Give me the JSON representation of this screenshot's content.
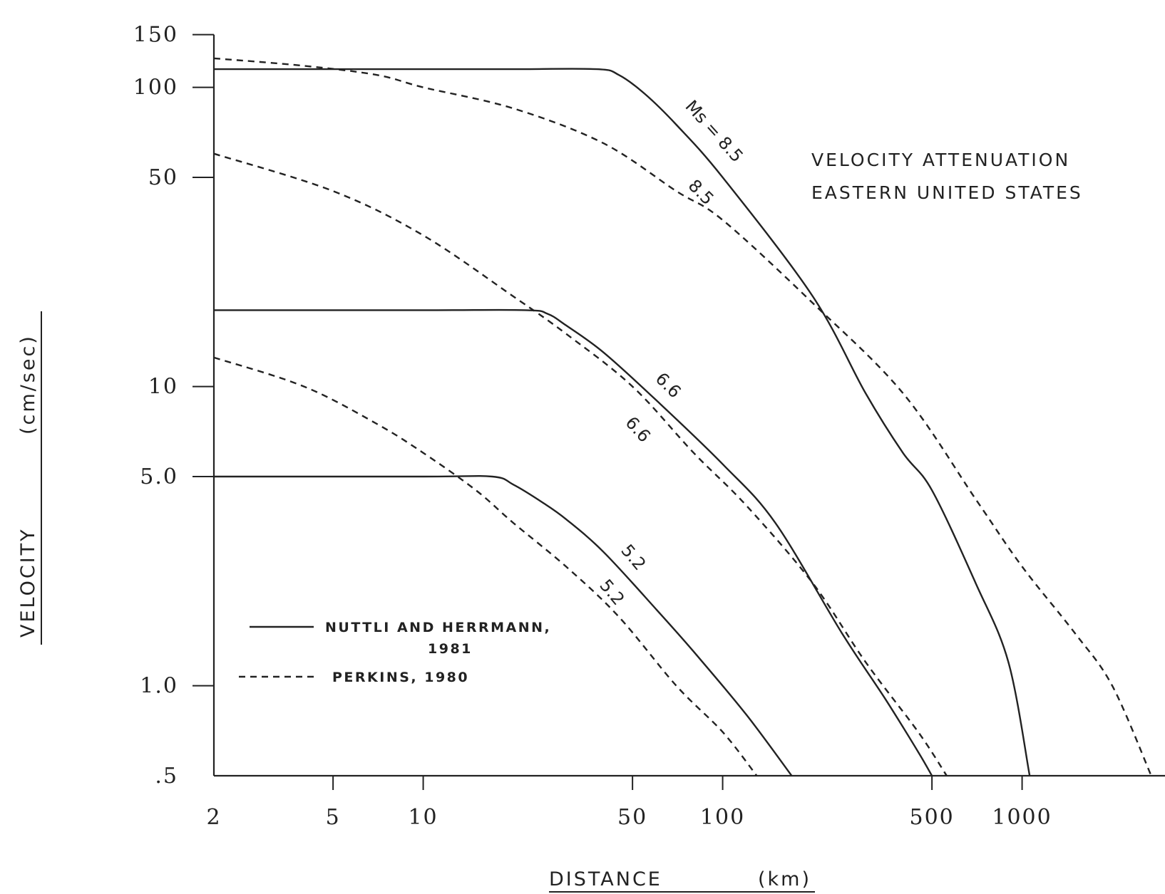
{
  "chart_data": {
    "type": "line",
    "title": [
      "VELOCITY ATTENUATION",
      "EASTERN UNITED STATES"
    ],
    "xlabel": "DISTANCE",
    "xunit": "(km)",
    "ylabel": "VELOCITY",
    "yunit": "(cm/sec)",
    "xscale": "log",
    "yscale": "log",
    "xlim": [
      2,
      3000
    ],
    "ylim": [
      0.5,
      150
    ],
    "x_ticks": [
      {
        "value": 2,
        "label": "2"
      },
      {
        "value": 5,
        "label": "5"
      },
      {
        "value": 10,
        "label": "10"
      },
      {
        "value": 50,
        "label": "50"
      },
      {
        "value": 100,
        "label": "100"
      },
      {
        "value": 500,
        "label": "500"
      },
      {
        "value": 1000,
        "label": "1000"
      }
    ],
    "y_ticks": [
      {
        "value": 0.5,
        "label": ".5"
      },
      {
        "value": 1.0,
        "label": "1.0"
      },
      {
        "value": 5.0,
        "label": "5.0"
      },
      {
        "value": 10,
        "label": "10"
      },
      {
        "value": 50,
        "label": "50"
      },
      {
        "value": 100,
        "label": "100"
      },
      {
        "value": 150,
        "label": "150"
      }
    ],
    "legend": [
      {
        "style": "solid",
        "label": [
          "NUTTLI AND HERRMANN,",
          "1981"
        ]
      },
      {
        "style": "dashed",
        "label": [
          "PERKINS, 1980"
        ]
      }
    ],
    "series": [
      {
        "style": "solid",
        "label": "Ms = 8.5",
        "points": [
          [
            2,
            115
          ],
          [
            5,
            115
          ],
          [
            10,
            115
          ],
          [
            20,
            115
          ],
          [
            38,
            115
          ],
          [
            45,
            110
          ],
          [
            55,
            95
          ],
          [
            70,
            75
          ],
          [
            100,
            50
          ],
          [
            200,
            20
          ],
          [
            300,
            9.5
          ],
          [
            400,
            6
          ],
          [
            500,
            4.5
          ],
          [
            700,
            2.2
          ],
          [
            900,
            1.2
          ],
          [
            1060,
            0.5
          ]
        ]
      },
      {
        "style": "dashed",
        "label": "8.5",
        "points": [
          [
            2,
            125
          ],
          [
            4,
            118
          ],
          [
            7,
            110
          ],
          [
            10,
            100
          ],
          [
            20,
            85
          ],
          [
            40,
            65
          ],
          [
            70,
            45
          ],
          [
            100,
            36
          ],
          [
            200,
            19
          ],
          [
            400,
            9.5
          ],
          [
            700,
            4.2
          ],
          [
            1000,
            2.5
          ],
          [
            1500,
            1.5
          ],
          [
            2000,
            1.0
          ],
          [
            2700,
            0.5
          ]
        ]
      },
      {
        "style": "solid",
        "label": "6.6",
        "points": [
          [
            2,
            18
          ],
          [
            10,
            18
          ],
          [
            22,
            18
          ],
          [
            26,
            17.5
          ],
          [
            30,
            16
          ],
          [
            40,
            13
          ],
          [
            60,
            9
          ],
          [
            100,
            5.5
          ],
          [
            150,
            3.5
          ],
          [
            250,
            1.5
          ],
          [
            350,
            0.9
          ],
          [
            450,
            0.6
          ],
          [
            500,
            0.5
          ]
        ]
      },
      {
        "style": "dashed",
        "label": "6.6",
        "points": [
          [
            2,
            60
          ],
          [
            5,
            45
          ],
          [
            10,
            32
          ],
          [
            20,
            20
          ],
          [
            30,
            15
          ],
          [
            50,
            10
          ],
          [
            80,
            6
          ],
          [
            120,
            4
          ],
          [
            200,
            2.2
          ],
          [
            300,
            1.2
          ],
          [
            450,
            0.7
          ],
          [
            560,
            0.5
          ]
        ]
      },
      {
        "style": "solid",
        "label": "5.2",
        "points": [
          [
            2,
            5
          ],
          [
            10,
            5
          ],
          [
            17,
            5
          ],
          [
            20,
            4.7
          ],
          [
            25,
            4.1
          ],
          [
            30,
            3.6
          ],
          [
            40,
            2.8
          ],
          [
            60,
            1.8
          ],
          [
            80,
            1.3
          ],
          [
            120,
            0.8
          ],
          [
            170,
            0.5
          ]
        ]
      },
      {
        "style": "dashed",
        "label": "5.2",
        "points": [
          [
            2,
            12.5
          ],
          [
            4,
            10
          ],
          [
            7,
            7.5
          ],
          [
            10,
            6
          ],
          [
            15,
            4.5
          ],
          [
            20,
            3.5
          ],
          [
            30,
            2.5
          ],
          [
            45,
            1.7
          ],
          [
            70,
            1.0
          ],
          [
            100,
            0.7
          ],
          [
            130,
            0.5
          ]
        ]
      }
    ]
  }
}
